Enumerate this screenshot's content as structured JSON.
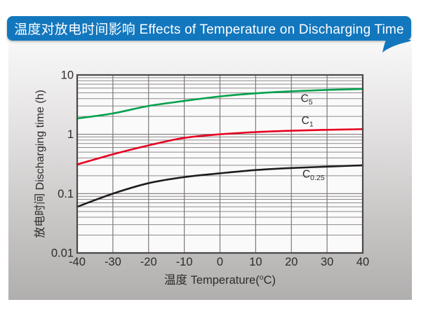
{
  "header": {
    "title": "温度对放电时间影响 Effects of Temperature on Discharging Time",
    "bg_color": "#1377be",
    "text_color": "#ffffff"
  },
  "chart_data": {
    "type": "line",
    "title": "温度对放电时间影响 Effects of Temperature on Discharging Time",
    "x": [
      -40,
      -30,
      -20,
      -10,
      0,
      10,
      20,
      30,
      40
    ],
    "xlabel": {
      "prefix": "温度  Temperature(",
      "sup": "o",
      "suffix": "C)"
    },
    "ylabel": "放电时间 Discharging time (h)",
    "x_ticks": [
      -40,
      -30,
      -20,
      -10,
      0,
      10,
      20,
      30,
      40
    ],
    "y_ticks": [
      10,
      1,
      0.1,
      0.01
    ],
    "y_tick_labels": [
      "10",
      "1",
      "0.1",
      "0.01"
    ],
    "xlim": [
      -40,
      40
    ],
    "ylim": [
      0.01,
      10
    ],
    "y_scale": "log",
    "grid": "on",
    "legend_position": "inline-curve-labels",
    "series": [
      {
        "name": "C5",
        "label_main": "C",
        "label_sub": "5",
        "color": "#00a14b",
        "values": [
          1.85,
          2.25,
          3.0,
          3.65,
          4.35,
          4.9,
          5.3,
          5.6,
          5.8
        ],
        "label_at": {
          "x": 24.3,
          "y": 3.5
        }
      },
      {
        "name": "C1",
        "label_main": "C",
        "label_sub": "1",
        "color": "#e60021",
        "values": [
          0.31,
          0.46,
          0.65,
          0.87,
          1.0,
          1.09,
          1.15,
          1.19,
          1.22
        ],
        "label_at": {
          "x": 24.5,
          "y": 1.5
        }
      },
      {
        "name": "C0.25",
        "label_main": "C",
        "label_sub": "0.25",
        "color": "#1f1c1c",
        "values": [
          0.06,
          0.1,
          0.15,
          0.19,
          0.22,
          0.25,
          0.27,
          0.285,
          0.3
        ],
        "label_at": {
          "x": 26.2,
          "y": 0.185
        }
      }
    ]
  }
}
